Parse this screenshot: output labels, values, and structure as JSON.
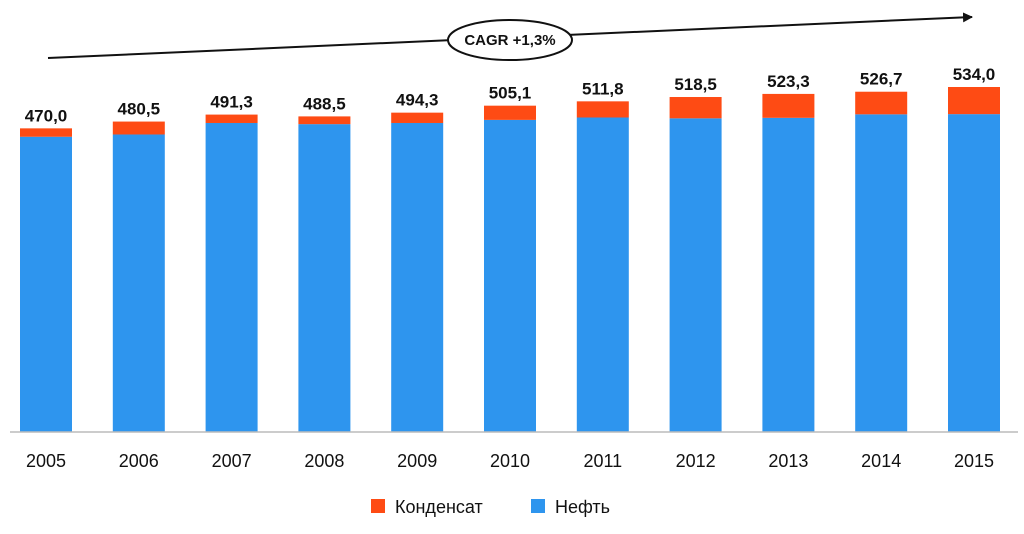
{
  "chart_data": {
    "type": "bar",
    "stacked": true,
    "categories": [
      "2005",
      "2006",
      "2007",
      "2008",
      "2009",
      "2010",
      "2011",
      "2012",
      "2013",
      "2014",
      "2015"
    ],
    "series": [
      {
        "name": "Нефть",
        "color": "#2e95ee",
        "values": [
          457.0,
          460.5,
          478.3,
          476.5,
          478.3,
          483.1,
          486.8,
          485.5,
          486.3,
          491.7,
          492.0
        ]
      },
      {
        "name": "Конденсат",
        "color": "#fe4b14",
        "values": [
          13.0,
          20.0,
          13.0,
          12.0,
          16.0,
          22.0,
          25.0,
          33.0,
          37.0,
          35.0,
          42.0
        ]
      }
    ],
    "totals": [
      470.0,
      480.5,
      491.3,
      488.5,
      494.3,
      505.1,
      511.8,
      518.5,
      523.3,
      526.7,
      534.0
    ],
    "total_labels": [
      "470,0",
      "480,5",
      "491,3",
      "488,5",
      "494,3",
      "505,1",
      "511,8",
      "518,5",
      "523,3",
      "526,7",
      "534,0"
    ],
    "annotation": "CAGR +1,3%",
    "ylim": [
      0,
      534
    ],
    "grid": false,
    "legend": {
      "position": "bottom",
      "items": [
        "Конденсат",
        "Нефть"
      ]
    }
  }
}
